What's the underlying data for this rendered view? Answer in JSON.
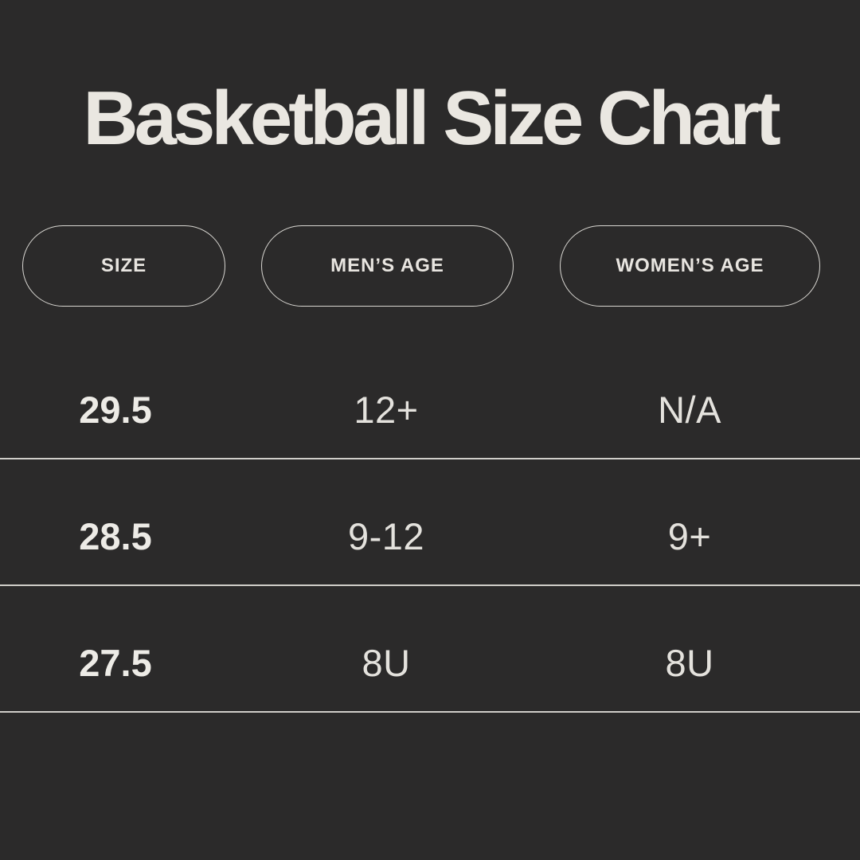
{
  "meta": {
    "background_color": "#2b2a2a",
    "text_color": "#eae7e1",
    "divider_color": "#d0cec9",
    "pill_border_color": "#d9d7d2"
  },
  "title": "Basketball Size Chart",
  "table": {
    "headers": [
      {
        "label": "SIZE"
      },
      {
        "label": "MEN’S AGE"
      },
      {
        "label": "WOMEN’S AGE"
      }
    ],
    "rows": [
      {
        "size": "29.5",
        "mens_age": "12+",
        "womens_age": "N/A"
      },
      {
        "size": "28.5",
        "mens_age": "9-12",
        "womens_age": "9+"
      },
      {
        "size": "27.5",
        "mens_age": "8U",
        "womens_age": "8U"
      }
    ]
  },
  "chart_data": {
    "type": "table",
    "title": "Basketball Size Chart",
    "columns": [
      "SIZE",
      "MEN’S AGE",
      "WOMEN’S AGE"
    ],
    "rows": [
      [
        "29.5",
        "12+",
        "N/A"
      ],
      [
        "28.5",
        "9-12",
        "9+"
      ],
      [
        "27.5",
        "8U",
        "8U"
      ]
    ],
    "layout_hints": {
      "theme": "dark",
      "header_style": "outlined-pill",
      "row_dividers": true
    }
  }
}
